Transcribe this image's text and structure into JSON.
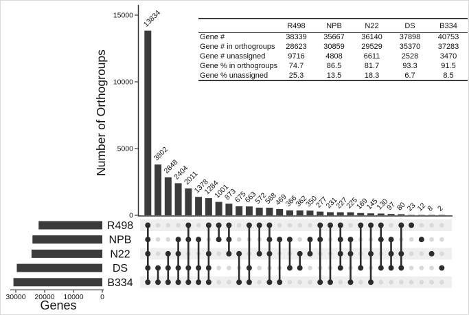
{
  "table": {
    "columns": [
      "R498",
      "NPB",
      "N22",
      "DS",
      "B334"
    ],
    "rows": [
      {
        "label": "Gene #",
        "values": [
          38339,
          35667,
          36140,
          37898,
          40753
        ]
      },
      {
        "label": "Gene # in orthogroups",
        "values": [
          28623,
          30859,
          29529,
          35370,
          37283
        ]
      },
      {
        "label": "Gene # unassigned",
        "values": [
          9716,
          4808,
          6611,
          2528,
          3470
        ]
      },
      {
        "label": "Gene % in orthogroups",
        "values": [
          74.7,
          86.5,
          81.7,
          93.3,
          91.5
        ]
      },
      {
        "label": "Gene % unassigned",
        "values": [
          25.3,
          13.5,
          18.3,
          6.7,
          8.5
        ]
      }
    ]
  },
  "chart_data": {
    "type": "upset",
    "intersection_axis": {
      "label": "Number of Orthogroups",
      "ticks": [
        0,
        5000,
        10000,
        15000
      ],
      "max": 15500
    },
    "set_axis": {
      "label": "Genes",
      "ticks": [
        30000,
        20000,
        10000,
        0
      ],
      "max": 31000
    },
    "sets": [
      {
        "name": "R498",
        "size": 22088
      },
      {
        "name": "NPB",
        "size": 24222
      },
      {
        "name": "N22",
        "size": 24552
      },
      {
        "name": "DS",
        "size": 29657
      },
      {
        "name": "B334",
        "size": 30814
      }
    ],
    "intersections": [
      {
        "size": 13834,
        "sets": [
          "R498",
          "NPB",
          "N22",
          "DS",
          "B334"
        ]
      },
      {
        "size": 3802,
        "sets": [
          "DS",
          "B334"
        ]
      },
      {
        "size": 2848,
        "sets": [
          "N22",
          "DS",
          "B334"
        ]
      },
      {
        "size": 2404,
        "sets": [
          "NPB",
          "N22",
          "DS",
          "B334"
        ]
      },
      {
        "size": 2011,
        "sets": [
          "R498",
          "NPB",
          "DS",
          "B334"
        ]
      },
      {
        "size": 1378,
        "sets": [
          "NPB",
          "DS",
          "B334"
        ]
      },
      {
        "size": 1284,
        "sets": [
          "R498",
          "N22",
          "DS",
          "B334"
        ]
      },
      {
        "size": 1001,
        "sets": [
          "R498",
          "NPB"
        ]
      },
      {
        "size": 873,
        "sets": [
          "R498",
          "NPB",
          "N22"
        ]
      },
      {
        "size": 675,
        "sets": [
          "N22",
          "B334"
        ]
      },
      {
        "size": 663,
        "sets": [
          "R498",
          "DS",
          "B334"
        ]
      },
      {
        "size": 572,
        "sets": [
          "R498",
          "N22"
        ]
      },
      {
        "size": 568,
        "sets": [
          "R498",
          "NPB",
          "N22",
          "B334"
        ]
      },
      {
        "size": 469,
        "sets": [
          "NPB",
          "B334"
        ]
      },
      {
        "size": 366,
        "sets": [
          "NPB",
          "DS"
        ]
      },
      {
        "size": 362,
        "sets": [
          "N22",
          "DS"
        ]
      },
      {
        "size": 350,
        "sets": [
          "NPB",
          "N22"
        ]
      },
      {
        "size": 277,
        "sets": [
          "R498",
          "NPB",
          "B334"
        ]
      },
      {
        "size": 231,
        "sets": [
          "R498",
          "B334"
        ]
      },
      {
        "size": 227,
        "sets": [
          "R498",
          "NPB",
          "N22",
          "DS"
        ]
      },
      {
        "size": 225,
        "sets": [
          "NPB",
          "N22",
          "B334"
        ]
      },
      {
        "size": 169,
        "sets": [
          "R498",
          "DS"
        ]
      },
      {
        "size": 145,
        "sets": [
          "R498",
          "N22",
          "B334"
        ]
      },
      {
        "size": 130,
        "sets": [
          "R498",
          "NPB",
          "DS"
        ]
      },
      {
        "size": 97,
        "sets": [
          "NPB",
          "N22",
          "DS"
        ]
      },
      {
        "size": 80,
        "sets": [
          "R498",
          "N22",
          "DS"
        ]
      },
      {
        "size": 23,
        "sets": [
          "R498"
        ]
      },
      {
        "size": 12,
        "sets": [
          "NPB"
        ]
      },
      {
        "size": 8,
        "sets": [
          "N22"
        ]
      },
      {
        "size": 2,
        "sets": [
          "DS"
        ]
      }
    ],
    "colors": {
      "bar": "#3b3b3b",
      "dot_active": "#2c2c2c",
      "dot_inactive": "#d9d9d9",
      "stripe": "#efefef",
      "axis": "#333333",
      "text": "#111111"
    }
  }
}
